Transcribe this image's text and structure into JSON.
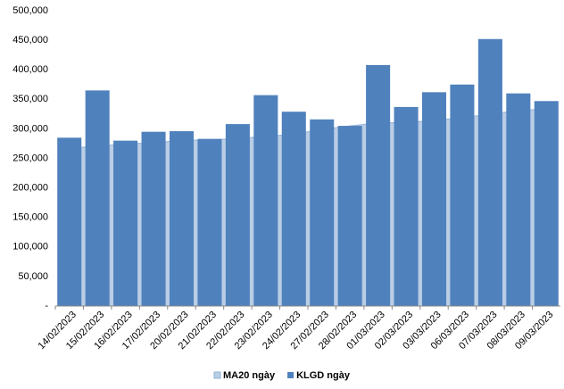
{
  "chart_data": {
    "type": "bar-area",
    "categories": [
      "14/02/2023",
      "15/02/2023",
      "16/02/2023",
      "17/02/2023",
      "20/02/2023",
      "21/02/2023",
      "22/02/2023",
      "23/02/2023",
      "24/02/2023",
      "27/02/2023",
      "28/02/2023",
      "01/03/2023",
      "02/03/2023",
      "03/03/2023",
      "06/03/2023",
      "07/03/2023",
      "08/03/2023",
      "09/03/2023"
    ],
    "series": [
      {
        "name": "MA20 ngày",
        "type": "area",
        "color": "#b9cde5",
        "values": [
          268000,
          270000,
          275000,
          276000,
          281000,
          281000,
          284000,
          287000,
          291000,
          299000,
          305000,
          310000,
          311000,
          314000,
          319000,
          325000,
          331000,
          334000
        ]
      },
      {
        "name": "KLGD ngày",
        "type": "bar",
        "color": "#4f81bd",
        "values": [
          285000,
          365000,
          280000,
          295000,
          296000,
          283000,
          308000,
          357000,
          329000,
          316000,
          305000,
          408000,
          337000,
          362000,
          375000,
          452000,
          360000,
          347000
        ]
      }
    ],
    "ylim": [
      0,
      500000
    ],
    "yticks": [
      {
        "value": 0,
        "label": "-"
      },
      {
        "value": 50000,
        "label": "50,000"
      },
      {
        "value": 100000,
        "label": "100,000"
      },
      {
        "value": 150000,
        "label": "150,000"
      },
      {
        "value": 200000,
        "label": "200,000"
      },
      {
        "value": 250000,
        "label": "250,000"
      },
      {
        "value": 300000,
        "label": "300,000"
      },
      {
        "value": 350000,
        "label": "350,000"
      },
      {
        "value": 400000,
        "label": "400,000"
      },
      {
        "value": 450000,
        "label": "450,000"
      },
      {
        "value": 500000,
        "label": "500,000"
      }
    ],
    "legend": "bottom",
    "grid": false
  }
}
